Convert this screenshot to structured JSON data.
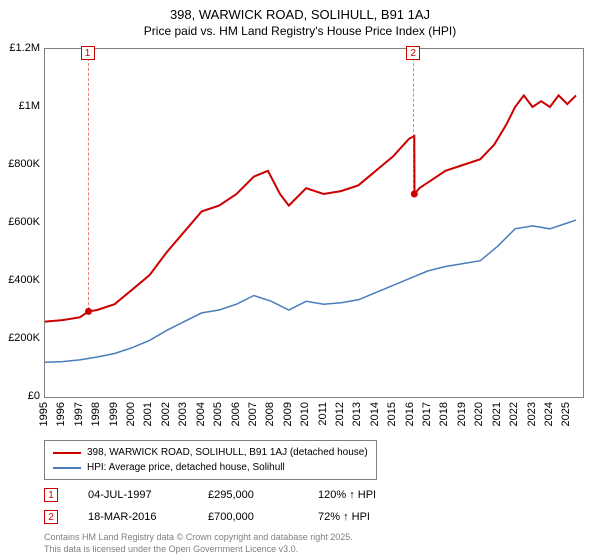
{
  "title": "398, WARWICK ROAD, SOLIHULL, B91 1AJ",
  "subtitle": "Price paid vs. HM Land Registry's House Price Index (HPI)",
  "chart": {
    "type": "line",
    "xlim": [
      1995,
      2025.9
    ],
    "ylim": [
      0,
      1200000
    ],
    "x_ticks": [
      1995,
      1996,
      1997,
      1998,
      1999,
      2000,
      2001,
      2002,
      2003,
      2004,
      2005,
      2006,
      2007,
      2008,
      2009,
      2010,
      2011,
      2012,
      2013,
      2014,
      2015,
      2016,
      2017,
      2018,
      2019,
      2020,
      2021,
      2022,
      2023,
      2024,
      2025
    ],
    "y_ticks": [
      0,
      200000,
      400000,
      600000,
      800000,
      1000000,
      1200000
    ],
    "y_tick_labels": [
      "£0",
      "£200K",
      "£400K",
      "£600K",
      "£800K",
      "£1M",
      "£1.2M"
    ],
    "background_color": "#ffffff",
    "border_color": "#808080",
    "series": [
      {
        "name": "398, WARWICK ROAD, SOLIHULL, B91 1AJ (detached house)",
        "color": "#cc0000",
        "line_width": 2,
        "data": [
          [
            1995,
            260000
          ],
          [
            1996,
            265000
          ],
          [
            1997,
            275000
          ],
          [
            1997.5,
            295000
          ],
          [
            1998,
            300000
          ],
          [
            1999,
            320000
          ],
          [
            2000,
            370000
          ],
          [
            2001,
            420000
          ],
          [
            2002,
            500000
          ],
          [
            2003,
            570000
          ],
          [
            2004,
            640000
          ],
          [
            2005,
            660000
          ],
          [
            2006,
            700000
          ],
          [
            2007,
            760000
          ],
          [
            2007.8,
            780000
          ],
          [
            2008.5,
            700000
          ],
          [
            2009,
            660000
          ],
          [
            2010,
            720000
          ],
          [
            2011,
            700000
          ],
          [
            2012,
            710000
          ],
          [
            2013,
            730000
          ],
          [
            2014,
            780000
          ],
          [
            2015,
            830000
          ],
          [
            2015.9,
            890000
          ],
          [
            2016.21,
            900000
          ],
          [
            2016.22,
            700000
          ],
          [
            2016.5,
            720000
          ],
          [
            2017,
            740000
          ],
          [
            2018,
            780000
          ],
          [
            2019,
            800000
          ],
          [
            2020,
            820000
          ],
          [
            2020.8,
            870000
          ],
          [
            2021.5,
            940000
          ],
          [
            2022,
            1000000
          ],
          [
            2022.5,
            1040000
          ],
          [
            2023,
            1000000
          ],
          [
            2023.5,
            1020000
          ],
          [
            2024,
            1000000
          ],
          [
            2024.5,
            1040000
          ],
          [
            2025,
            1010000
          ],
          [
            2025.5,
            1040000
          ]
        ]
      },
      {
        "name": "HPI: Average price, detached house, Solihull",
        "color": "#4a7ebb",
        "line_width": 1.5,
        "data": [
          [
            1995,
            120000
          ],
          [
            1996,
            122000
          ],
          [
            1997,
            128000
          ],
          [
            1998,
            138000
          ],
          [
            1999,
            150000
          ],
          [
            2000,
            170000
          ],
          [
            2001,
            195000
          ],
          [
            2002,
            230000
          ],
          [
            2003,
            260000
          ],
          [
            2004,
            290000
          ],
          [
            2005,
            300000
          ],
          [
            2006,
            320000
          ],
          [
            2007,
            350000
          ],
          [
            2008,
            330000
          ],
          [
            2009,
            300000
          ],
          [
            2010,
            330000
          ],
          [
            2011,
            320000
          ],
          [
            2012,
            325000
          ],
          [
            2013,
            335000
          ],
          [
            2014,
            360000
          ],
          [
            2015,
            385000
          ],
          [
            2016,
            410000
          ],
          [
            2017,
            435000
          ],
          [
            2018,
            450000
          ],
          [
            2019,
            460000
          ],
          [
            2020,
            470000
          ],
          [
            2021,
            520000
          ],
          [
            2022,
            580000
          ],
          [
            2023,
            590000
          ],
          [
            2024,
            580000
          ],
          [
            2025,
            600000
          ],
          [
            2025.5,
            610000
          ]
        ]
      }
    ],
    "markers": [
      {
        "n": "1",
        "x": 1997.5,
        "y": 295000
      },
      {
        "n": "2",
        "x": 2016.21,
        "y": 700000
      }
    ]
  },
  "legend": {
    "items": [
      {
        "color": "#cc0000",
        "label": "398, WARWICK ROAD, SOLIHULL, B91 1AJ (detached house)"
      },
      {
        "color": "#4a7ebb",
        "label": "HPI: Average price, detached house, Solihull"
      }
    ]
  },
  "sales": [
    {
      "n": "1",
      "date": "04-JUL-1997",
      "price": "£295,000",
      "pct": "120% ↑ HPI"
    },
    {
      "n": "2",
      "date": "18-MAR-2016",
      "price": "£700,000",
      "pct": "72% ↑ HPI"
    }
  ],
  "footer_line1": "Contains HM Land Registry data © Crown copyright and database right 2025.",
  "footer_line2": "This data is licensed under the Open Government Licence v3.0."
}
